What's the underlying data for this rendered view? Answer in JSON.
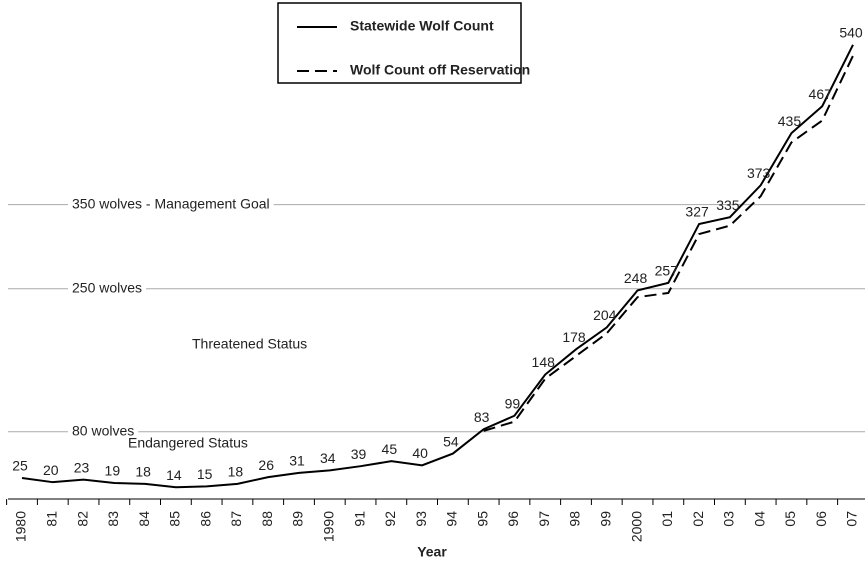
{
  "chart_data": {
    "type": "line",
    "x_label": "Year",
    "categories": [
      "1980",
      "81",
      "82",
      "83",
      "84",
      "85",
      "86",
      "87",
      "88",
      "89",
      "1990",
      "91",
      "92",
      "93",
      "94",
      "95",
      "96",
      "97",
      "98",
      "99",
      "2000",
      "01",
      "02",
      "03",
      "04",
      "05",
      "06",
      "07"
    ],
    "series": [
      {
        "name": "Statewide Wolf Count",
        "color": "#000000",
        "dash": false,
        "show_values": true,
        "values": [
          25,
          20,
          23,
          19,
          18,
          14,
          15,
          18,
          26,
          31,
          34,
          39,
          45,
          40,
          54,
          83,
          99,
          148,
          178,
          204,
          248,
          257,
          327,
          335,
          373,
          435,
          467,
          540
        ]
      },
      {
        "name": "Wolf Count off Reservation",
        "color": "#000000",
        "dash": true,
        "show_values": false,
        "values": [
          null,
          null,
          null,
          null,
          null,
          null,
          null,
          null,
          null,
          null,
          null,
          null,
          null,
          null,
          null,
          81,
          92,
          143,
          170,
          197,
          240,
          245,
          315,
          325,
          360,
          424,
          450,
          527
        ]
      }
    ],
    "reference_lines": [
      {
        "value": 350,
        "label": "350 wolves - Management Goal"
      },
      {
        "value": 250,
        "label": "250 wolves"
      },
      {
        "value": 80,
        "label": "80 wolves"
      }
    ],
    "annotations": [
      "Threatened Status",
      "Endangered Status"
    ],
    "ylim": [
      0,
      560
    ],
    "legend": "top"
  }
}
